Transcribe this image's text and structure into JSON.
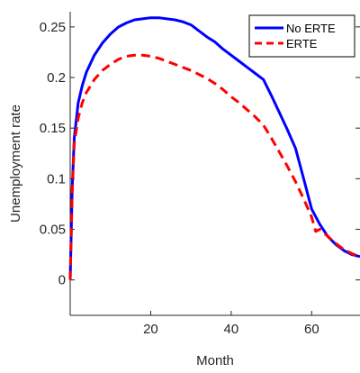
{
  "chart_data": {
    "type": "line",
    "xlabel": "Month",
    "ylabel": "Unemployment rate",
    "xlim": [
      0,
      72
    ],
    "ylim": [
      -0.035,
      0.265
    ],
    "xticks": [
      20,
      40,
      60
    ],
    "yticks": [
      0,
      0.05,
      0.1,
      0.15,
      0.2,
      0.25
    ],
    "ytick_labels": [
      "0",
      "0.05",
      "0.1",
      "0.15",
      "0.2",
      "0.25"
    ],
    "xtick_labels": [
      "20",
      "40",
      "60"
    ],
    "grid": false,
    "legend_position": "top-right",
    "series": [
      {
        "name": "No ERTE",
        "color": "#0000ff",
        "style": "solid",
        "x": [
          0,
          0.5,
          1,
          2,
          3,
          4,
          6,
          8,
          10,
          12,
          14,
          16,
          18,
          20,
          22,
          24,
          26,
          28,
          30,
          32,
          34,
          36,
          38,
          40,
          42,
          44,
          46,
          48,
          50,
          52,
          54,
          56,
          58,
          60,
          62,
          64,
          66,
          68,
          70,
          72
        ],
        "y": [
          0,
          0.09,
          0.14,
          0.175,
          0.192,
          0.205,
          0.222,
          0.234,
          0.243,
          0.25,
          0.254,
          0.257,
          0.258,
          0.259,
          0.259,
          0.258,
          0.257,
          0.255,
          0.252,
          0.246,
          0.24,
          0.235,
          0.228,
          0.222,
          0.216,
          0.21,
          0.204,
          0.198,
          0.182,
          0.165,
          0.148,
          0.13,
          0.1,
          0.07,
          0.055,
          0.043,
          0.035,
          0.029,
          0.025,
          0.023
        ]
      },
      {
        "name": "ERTE",
        "color": "#ff0000",
        "style": "dashed",
        "x": [
          0,
          0.5,
          1,
          2,
          3,
          4,
          6,
          8,
          10,
          12,
          14,
          16,
          18,
          20,
          22,
          24,
          26,
          28,
          30,
          32,
          34,
          36,
          38,
          40,
          42,
          44,
          46,
          48,
          50,
          52,
          54,
          56,
          58,
          60,
          61,
          62,
          64,
          66,
          68,
          70,
          72
        ],
        "y": [
          0,
          0.085,
          0.135,
          0.16,
          0.175,
          0.185,
          0.198,
          0.207,
          0.213,
          0.218,
          0.221,
          0.222,
          0.222,
          0.221,
          0.219,
          0.216,
          0.213,
          0.21,
          0.207,
          0.203,
          0.199,
          0.194,
          0.188,
          0.181,
          0.175,
          0.168,
          0.161,
          0.153,
          0.14,
          0.126,
          0.112,
          0.097,
          0.08,
          0.062,
          0.048,
          0.05,
          0.043,
          0.036,
          0.03,
          0.026,
          0.023
        ]
      }
    ]
  }
}
